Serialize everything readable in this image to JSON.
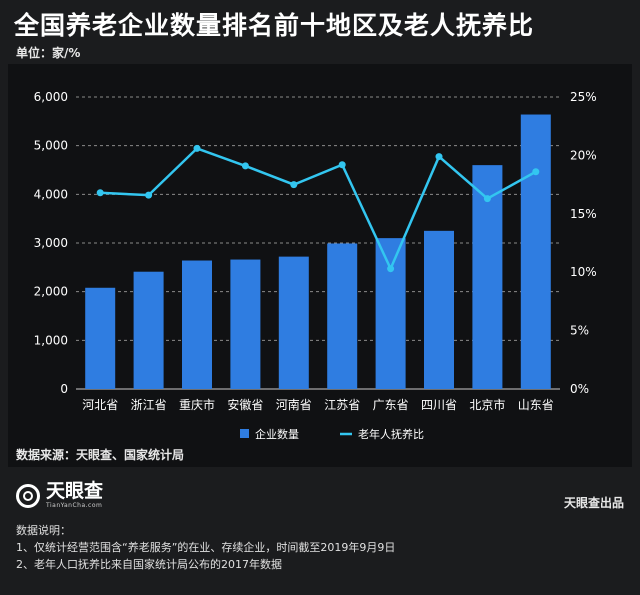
{
  "title": "全国养老企业数量排名前十地区及老人抚养比",
  "unit_label": "单位：家/%",
  "source": "数据来源：天眼查、国家统计局",
  "logo": {
    "cn": "天眼查",
    "en": "TianYanCha.com"
  },
  "publisher": "天眼查出品",
  "notes": {
    "heading": "数据说明：",
    "lines": [
      "1、仅统计经营范围含“养老服务”的在业、存续企业，时间截至2019年9月9日",
      "2、老年人口抚养比来自国家统计局公布的2017年数据"
    ]
  },
  "colors": {
    "bar": "#2f7de1",
    "line": "#33c6f0",
    "grid": "#8a8a8a",
    "axis_text": "#ffffff"
  },
  "chart_data": {
    "type": "bar",
    "categories": [
      "河北省",
      "浙江省",
      "重庆市",
      "安徽省",
      "河南省",
      "江苏省",
      "广东省",
      "四川省",
      "北京市",
      "山东省"
    ],
    "series": [
      {
        "name": "企业数量",
        "type": "bar",
        "axis": "left",
        "values": [
          2080,
          2410,
          2640,
          2660,
          2720,
          2990,
          3100,
          3250,
          4600,
          5640
        ]
      },
      {
        "name": "老年人抚养比",
        "type": "line",
        "axis": "right",
        "values": [
          16.8,
          16.6,
          20.6,
          19.1,
          17.5,
          19.2,
          10.3,
          19.9,
          16.3,
          18.6
        ]
      }
    ],
    "y_left": {
      "ticks": [
        "0",
        "1,000",
        "2,000",
        "3,000",
        "4,000",
        "5,000",
        "6,000"
      ],
      "range": [
        0,
        6000
      ]
    },
    "y_right": {
      "ticks": [
        "0%",
        "5%",
        "10%",
        "15%",
        "20%",
        "25%"
      ],
      "range": [
        0,
        25
      ]
    },
    "grid": true,
    "legend": {
      "position": "bottom",
      "entries": [
        "企业数量",
        "老年人抚养比"
      ]
    }
  }
}
